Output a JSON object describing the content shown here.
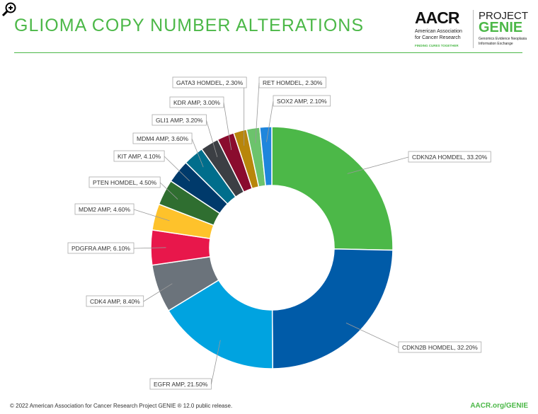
{
  "header": {
    "title": "GLIOMA COPY NUMBER ALTERATIONS"
  },
  "logo": {
    "aacr": "AACR",
    "aacr_sub": "American Association for Cancer Research",
    "tagline": "FINDING CURES TOGETHER",
    "project": "PROJECT",
    "genie": "GENIE",
    "genie_sub": "Genomics Evidence Neoplasia Information Exchange"
  },
  "footer": {
    "copyright": "© 2022 American Association for Cancer Research Project GENIE ® 12.0 public release.",
    "url": "AACR.org/GENIE"
  },
  "chart_data": {
    "type": "pie",
    "donut": true,
    "title": "GLIOMA COPY NUMBER ALTERATIONS",
    "legend": "none (callout labels)",
    "categories": [
      "CDKN2A HOMDEL",
      "CDKN2B HOMDEL",
      "EGFR AMP",
      "CDK4 AMP",
      "PDGFRA AMP",
      "MDM2 AMP",
      "PTEN HOMDEL",
      "KIT AMP",
      "MDM4 AMP",
      "GLI1 AMP",
      "KDR AMP",
      "GATA3 HOMDEL",
      "RET HOMDEL",
      "SOX2 AMP"
    ],
    "values": [
      33.2,
      32.2,
      21.5,
      8.4,
      6.1,
      4.6,
      4.5,
      4.1,
      3.6,
      3.2,
      3.0,
      2.3,
      2.3,
      2.1
    ],
    "labels": [
      "CDKN2A HOMDEL, 33.20%",
      "CDKN2B HOMDEL, 32.20%",
      "EGFR AMP, 21.50%",
      "CDK4 AMP, 8.40%",
      "PDGFRA AMP, 6.10%",
      "MDM2 AMP, 4.60%",
      "PTEN HOMDEL, 4.50%",
      "KIT AMP, 4.10%",
      "MDM4 AMP, 3.60%",
      "GLI1 AMP, 3.20%",
      "KDR AMP, 3.00%",
      "GATA3 HOMDEL, 2.30%",
      "RET HOMDEL, 2.30%",
      "SOX2 AMP, 2.10%"
    ],
    "colors": [
      "#4cb848",
      "#005ba8",
      "#00a3e0",
      "#6b737b",
      "#e8174b",
      "#fec22b",
      "#2f6e30",
      "#003a6b",
      "#006e8c",
      "#3c3f44",
      "#8a0c2e",
      "#b8860b",
      "#6cc36c",
      "#1f86dc"
    ]
  }
}
